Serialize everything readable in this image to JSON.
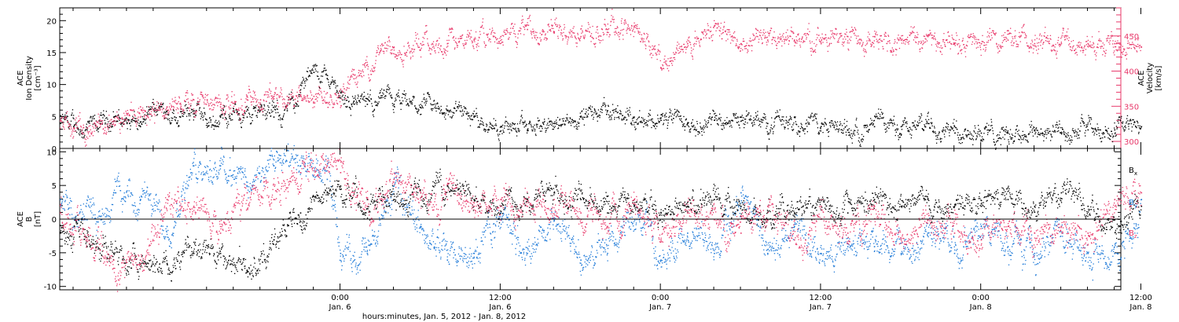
{
  "figure": {
    "xlabel": "hours:minutes, Jan.  5, 2012 - Jan.  8, 2012",
    "x_range_hours": [
      -21,
      58.5
    ],
    "x_ticks": [
      {
        "hours": 0,
        "time": "0:00",
        "day": "Jan. 6"
      },
      {
        "hours": 12,
        "time": "12:00",
        "day": "Jan. 6"
      },
      {
        "hours": 24,
        "time": "0:00",
        "day": "Jan. 7"
      },
      {
        "hours": 36,
        "time": "12:00",
        "day": "Jan. 7"
      },
      {
        "hours": 48,
        "time": "0:00",
        "day": "Jan. 8"
      },
      {
        "hours": 60,
        "time": "12:00",
        "day": "Jan. 8"
      }
    ],
    "colors": {
      "black": "#000000",
      "blue": "#1f7ad8",
      "pink": "#e8386a"
    }
  },
  "chart_data": [
    {
      "type": "scatter",
      "panel": "top",
      "ylabel_lines": [
        "ACE",
        "Ion Density",
        "[cm⁻³]"
      ],
      "ylabel": "ACE Ion Density [cm^-3]",
      "ylim": [
        0,
        22
      ],
      "yticks": [
        0,
        5,
        10,
        15,
        20
      ],
      "y2label_lines": [
        "ACE",
        "Velocity",
        "[km/s]"
      ],
      "y2label": "ACE Velocity [km/s]",
      "y2lim": [
        290,
        490
      ],
      "y2ticks": [
        300,
        350,
        400,
        450
      ],
      "series": [
        {
          "name": "Ion Density",
          "axis": "left",
          "color": "#000000",
          "x": [
            -21,
            -20,
            -19,
            -18,
            -17,
            -16,
            -15,
            -14,
            -13,
            -12,
            -11,
            -10,
            -9,
            -8,
            -7,
            -6,
            -5,
            -4,
            -3,
            -2,
            -1,
            0,
            1,
            2,
            3,
            4,
            6,
            8,
            10,
            12,
            14,
            16,
            18,
            20,
            22,
            24,
            26,
            28,
            30,
            32,
            34,
            36,
            38,
            40,
            42,
            44,
            46,
            48,
            50,
            52,
            54,
            56,
            58,
            60
          ],
          "y": [
            4,
            3.5,
            3,
            4,
            5,
            4,
            3.5,
            7,
            6,
            5,
            6,
            4,
            5,
            6,
            5,
            7,
            5,
            6,
            10,
            12,
            11,
            8,
            7.5,
            7,
            8,
            7,
            6.5,
            6,
            5,
            3.5,
            3,
            4,
            5,
            6,
            5,
            4.5,
            4,
            4.5,
            5,
            4,
            5,
            3.5,
            3,
            3.5,
            3.5,
            4,
            3.5,
            2.5,
            2.5,
            3,
            2.5,
            3,
            3,
            3.5
          ]
        },
        {
          "name": "Velocity",
          "axis": "right",
          "color": "#e8386a",
          "x": [
            -21,
            -20,
            -19,
            -18,
            -17,
            -16,
            -15,
            -14,
            -13,
            -12,
            -11,
            -10,
            -9,
            -8,
            -7,
            -6,
            -5,
            -4,
            -3,
            -2,
            -1,
            0,
            1,
            2,
            3,
            4,
            6,
            8,
            10,
            12,
            14,
            16,
            18,
            20,
            22,
            24,
            26,
            28,
            30,
            32,
            34,
            36,
            38,
            40,
            42,
            44,
            46,
            48,
            50,
            52,
            54,
            56,
            58,
            60
          ],
          "y": [
            330,
            320,
            320,
            325,
            330,
            340,
            350,
            345,
            350,
            355,
            360,
            360,
            350,
            355,
            360,
            360,
            365,
            365,
            365,
            365,
            370,
            375,
            390,
            410,
            430,
            435,
            440,
            440,
            445,
            450,
            460,
            455,
            450,
            460,
            465,
            405,
            440,
            465,
            440,
            445,
            445,
            440,
            450,
            450,
            445,
            450,
            440,
            440,
            445,
            440,
            440,
            440,
            440,
            435
          ]
        }
      ]
    },
    {
      "type": "scatter",
      "panel": "bottom",
      "ylabel_lines": [
        "ACE",
        "B",
        "[nT]"
      ],
      "ylabel": "ACE B [nT]",
      "ylim": [
        -10.5,
        10.5
      ],
      "yticks": [
        -10,
        -5,
        0,
        5,
        10
      ],
      "zero_line": true,
      "legend_position": "right",
      "series": [
        {
          "name": "Bx",
          "label_main": "B",
          "label_sub": "x",
          "color": "#000000",
          "x": [
            -21,
            -19,
            -17,
            -15,
            -13,
            -11,
            -9,
            -7,
            -5,
            -3,
            -1,
            0,
            2,
            4,
            6,
            8,
            10,
            12,
            14,
            16,
            18,
            20,
            22,
            24,
            26,
            28,
            30,
            32,
            34,
            36,
            38,
            40,
            42,
            44,
            46,
            48,
            50,
            52,
            54,
            56,
            58,
            60
          ],
          "y": [
            -2,
            -4,
            -5,
            -6,
            -6.5,
            -5,
            -5,
            -7.5,
            -3,
            1,
            4,
            5,
            3,
            3,
            4,
            5,
            3,
            2,
            3,
            4,
            3,
            1,
            2,
            1,
            2,
            3,
            2,
            0,
            1,
            2,
            1,
            3,
            2,
            3,
            2,
            2,
            3,
            2,
            4,
            2,
            0,
            2
          ]
        },
        {
          "name": "By",
          "label_main": "B",
          "label_sub": "y",
          "color": "#1f7ad8",
          "x": [
            -21,
            -19,
            -17,
            -15,
            -13,
            -11,
            -9,
            -7,
            -5,
            -3,
            -1,
            0,
            2,
            4,
            6,
            8,
            10,
            12,
            14,
            16,
            18,
            20,
            22,
            24,
            26,
            28,
            30,
            32,
            34,
            36,
            38,
            40,
            42,
            44,
            46,
            48,
            50,
            52,
            54,
            56,
            58,
            60
          ],
          "y": [
            3,
            0,
            4,
            3,
            -1,
            8,
            8,
            5,
            8,
            8,
            6,
            -5,
            -5,
            5,
            -1,
            -6,
            -5,
            1,
            -5,
            0,
            -6,
            -5,
            2,
            -6,
            -2,
            -5,
            4,
            -5,
            -1,
            -5,
            -4,
            -4,
            -5,
            -2,
            -5,
            -1,
            -4,
            -5,
            -1,
            -5,
            -5,
            3
          ]
        },
        {
          "name": "Bz",
          "label_main": "B",
          "label_sub": "z",
          "color": "#e8386a",
          "x": [
            -21,
            -19,
            -17,
            -15,
            -13,
            -11,
            -9,
            -7,
            -5,
            -3,
            -1,
            0,
            2,
            4,
            6,
            8,
            10,
            12,
            14,
            16,
            18,
            20,
            22,
            24,
            26,
            28,
            30,
            32,
            34,
            36,
            38,
            40,
            42,
            44,
            46,
            48,
            50,
            52,
            54,
            56,
            58,
            60
          ],
          "y": [
            1,
            -3,
            -6,
            -6,
            3,
            2,
            -2,
            4,
            3,
            7,
            8,
            7,
            2,
            6,
            4,
            3,
            2,
            3,
            2,
            3,
            1,
            -1,
            3,
            -3,
            1,
            0,
            -2,
            2,
            -3,
            2,
            -2,
            2,
            -3,
            0,
            -2,
            -3,
            -1,
            -2,
            -1,
            -2,
            3,
            4
          ]
        }
      ]
    }
  ]
}
